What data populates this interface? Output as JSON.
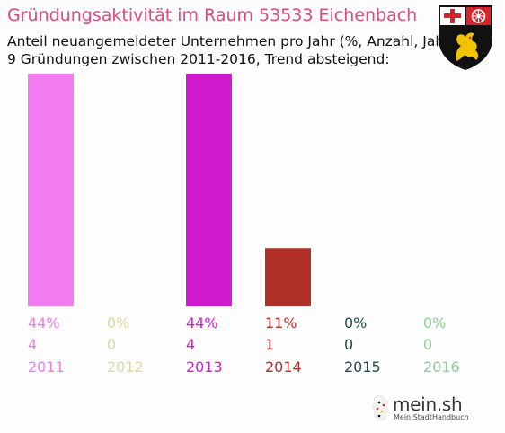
{
  "header": {
    "title": "Gründungsaktivität im Raum 53533 Eichenbach",
    "subtitle_line1": "Anteil neuangemeldeter Unternehmen pro Jahr (%, Anzahl, Jahr)",
    "subtitle_line2": "9 Gründungen zwischen 2011-2016, Trend absteigend:"
  },
  "crest": {
    "icon": "coat-of-arms-rhineland-palatinate-icon"
  },
  "logo": {
    "name": "mein.sh",
    "tagline": "Mein StadtHandbuch",
    "icon": "germany-map-icon"
  },
  "chart_data": {
    "type": "bar",
    "title": "Gründungsaktivität im Raum 53533 Eichenbach",
    "categories": [
      "2011",
      "2012",
      "2013",
      "2014",
      "2015",
      "2016"
    ],
    "values": [
      4,
      0,
      4,
      1,
      0,
      0
    ],
    "percent_labels": [
      "44%",
      "0%",
      "44%",
      "11%",
      "0%",
      "0%"
    ],
    "count_labels": [
      "4",
      "0",
      "4",
      "1",
      "0",
      "0"
    ],
    "colors": [
      "#f07cf0",
      "#ddd9a0",
      "#d01ad0",
      "#b03028",
      "#1f4a4a",
      "#8ccf98"
    ],
    "ylim": [
      0,
      4
    ],
    "grid": false,
    "legend": "none"
  }
}
